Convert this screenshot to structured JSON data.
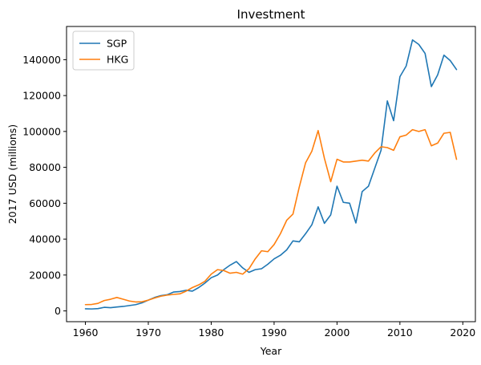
{
  "chart_data": {
    "type": "line",
    "title": "Investment",
    "xlabel": "Year",
    "ylabel": "2017 USD (millions)",
    "xlim": [
      1957,
      2022
    ],
    "ylim": [
      -6000,
      158500
    ],
    "xticks": [
      1960,
      1970,
      1980,
      1990,
      2000,
      2010,
      2020
    ],
    "yticks": [
      0,
      20000,
      40000,
      60000,
      80000,
      100000,
      120000,
      140000
    ],
    "grid": false,
    "legend_position": "top-left",
    "x": [
      1960,
      1961,
      1962,
      1963,
      1964,
      1965,
      1966,
      1967,
      1968,
      1969,
      1970,
      1971,
      1972,
      1973,
      1974,
      1975,
      1976,
      1977,
      1978,
      1979,
      1980,
      1981,
      1982,
      1983,
      1984,
      1985,
      1986,
      1987,
      1988,
      1989,
      1990,
      1991,
      1992,
      1993,
      1994,
      1995,
      1996,
      1997,
      1998,
      1999,
      2000,
      2001,
      2002,
      2003,
      2004,
      2005,
      2006,
      2007,
      2008,
      2009,
      2010,
      2011,
      2012,
      2013,
      2014,
      2015,
      2016,
      2017,
      2018,
      2019
    ],
    "series": [
      {
        "name": "SGP",
        "color": "#1f77b4",
        "values": [
          1200,
          1100,
          1300,
          2000,
          1800,
          2200,
          2500,
          3000,
          3500,
          4500,
          6000,
          7500,
          8500,
          9000,
          10500,
          10800,
          11500,
          11000,
          13000,
          15500,
          18500,
          20000,
          23000,
          25500,
          27500,
          24000,
          21500,
          23000,
          23500,
          26000,
          29000,
          31000,
          34000,
          39000,
          38500,
          43000,
          48000,
          58000,
          48800,
          53500,
          69500,
          60500,
          60000,
          49000,
          66500,
          69500,
          79500,
          89500,
          117000,
          106000,
          130500,
          136500,
          151000,
          148500,
          143500,
          125000,
          131500,
          142500,
          139500,
          134500
        ]
      },
      {
        "name": "HKG",
        "color": "#ff7f0e",
        "values": [
          3500,
          3600,
          4200,
          5800,
          6500,
          7500,
          6500,
          5500,
          5000,
          5100,
          6000,
          7200,
          8200,
          8800,
          9200,
          9500,
          11000,
          13000,
          14500,
          16500,
          20500,
          23000,
          22500,
          21000,
          21500,
          20500,
          23500,
          29000,
          33500,
          33000,
          37000,
          43000,
          50500,
          54000,
          69000,
          82500,
          89000,
          100500,
          85000,
          72000,
          84500,
          83000,
          83000,
          83500,
          84000,
          83500,
          88000,
          91500,
          91000,
          89500,
          97000,
          98000,
          101000,
          100000,
          101000,
          92000,
          93500,
          99000,
          99500,
          84500
        ]
      }
    ]
  }
}
